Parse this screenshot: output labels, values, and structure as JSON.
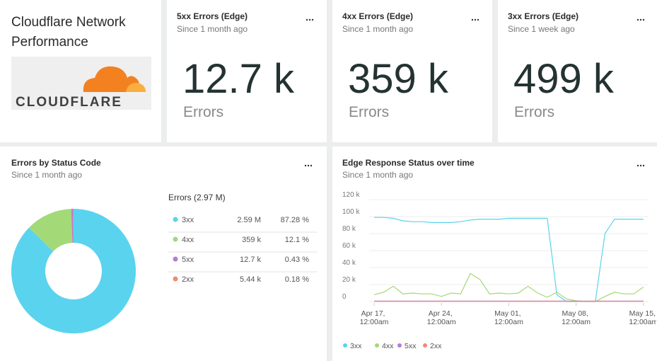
{
  "header_tile": {
    "title": "Cloudflare Network Performance",
    "logo_text": "CLOUDFLARE"
  },
  "billboards": [
    {
      "title": "5xx Errors (Edge)",
      "subtitle": "Since 1 month ago",
      "value": "12.7 k",
      "unit": "Errors"
    },
    {
      "title": "4xx Errors (Edge)",
      "subtitle": "Since 1 month ago",
      "value": "359 k",
      "unit": "Errors"
    },
    {
      "title": "3xx Errors (Edge)",
      "subtitle": "Since 1 week ago",
      "value": "499 k",
      "unit": "Errors"
    }
  ],
  "chart_data": [
    {
      "type": "pie",
      "title": "Errors by Status Code",
      "subtitle": "Since 1 month ago",
      "legend_title": "Errors (2.97 M)",
      "categories": [
        "3xx",
        "4xx",
        "5xx",
        "2xx"
      ],
      "values": [
        87.28,
        12.1,
        0.43,
        0.18
      ],
      "value_labels": [
        "87.28 %",
        "12.1 %",
        "0.43 %",
        "0.18 %"
      ],
      "counts": [
        "2.59 M",
        "359 k",
        "12.7 k",
        "5.44 k"
      ],
      "colors": [
        "#5ad3ee",
        "#a3d977",
        "#b77bd6",
        "#f08a72"
      ]
    },
    {
      "type": "line",
      "title": "Edge Response Status over time",
      "subtitle": "Since 1 month ago",
      "x": [
        "Apr 17",
        "Apr 18",
        "Apr 19",
        "Apr 20",
        "Apr 21",
        "Apr 22",
        "Apr 23",
        "Apr 24",
        "Apr 25",
        "Apr 26",
        "Apr 27",
        "Apr 28",
        "Apr 29",
        "Apr 30",
        "May 01",
        "May 02",
        "May 03",
        "May 04",
        "May 05",
        "May 06",
        "May 07",
        "May 08",
        "May 09",
        "May 10",
        "May 11",
        "May 12",
        "May 13",
        "May 14",
        "May 15"
      ],
      "series": [
        {
          "name": "3xx",
          "color": "#5ad3ee",
          "values": [
            99000,
            99000,
            98000,
            95000,
            94000,
            94000,
            93000,
            93000,
            93000,
            94000,
            96000,
            97000,
            97000,
            97000,
            98000,
            98000,
            98000,
            98000,
            98000,
            8000,
            0,
            0,
            0,
            0,
            80000,
            97000,
            97000,
            97000,
            97000
          ]
        },
        {
          "name": "4xx",
          "color": "#a3d977",
          "values": [
            8000,
            11000,
            18000,
            9000,
            10000,
            9000,
            9000,
            6000,
            10000,
            9000,
            33000,
            26000,
            9000,
            10000,
            9000,
            10000,
            18000,
            10000,
            5000,
            11000,
            3000,
            1000,
            0,
            0,
            6000,
            11000,
            9000,
            9000,
            17000
          ]
        },
        {
          "name": "5xx",
          "color": "#b77bd6",
          "values": [
            500,
            500,
            500,
            500,
            500,
            500,
            500,
            500,
            500,
            500,
            500,
            500,
            500,
            500,
            500,
            500,
            500,
            500,
            500,
            500,
            500,
            500,
            500,
            500,
            500,
            500,
            500,
            500,
            500
          ]
        },
        {
          "name": "2xx",
          "color": "#f08a72",
          "values": [
            200,
            200,
            200,
            200,
            200,
            200,
            200,
            200,
            200,
            200,
            200,
            200,
            200,
            200,
            200,
            200,
            200,
            200,
            200,
            200,
            200,
            200,
            200,
            200,
            200,
            200,
            200,
            200,
            200
          ]
        }
      ],
      "ylim": [
        0,
        120000
      ],
      "yticks": [
        0,
        {
          "value": 20000,
          "label": "20 k"
        },
        {
          "value": 40000,
          "label": "40 k"
        },
        {
          "value": 60000,
          "label": "60 k"
        },
        {
          "value": 80000,
          "label": "80 k"
        },
        {
          "value": 100000,
          "label": "100 k"
        },
        {
          "value": 120000,
          "label": "120 k"
        }
      ],
      "xticks": [
        {
          "value": "Apr 17",
          "label": "Apr 17, 12:00am"
        },
        {
          "value": "Apr 24",
          "label": "Apr 24, 12:00am"
        },
        {
          "value": "May 01",
          "label": "May 01, 12:00am"
        },
        {
          "value": "May 08",
          "label": "May 08, 12:00am"
        },
        {
          "value": "May 15",
          "label": "May 15, 12:00am"
        }
      ],
      "grid": true,
      "legend": "bottom"
    }
  ]
}
